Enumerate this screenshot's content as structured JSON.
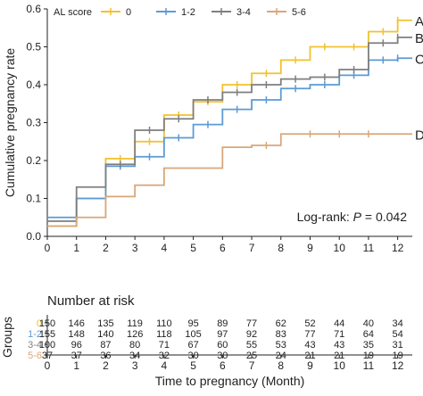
{
  "chart_data": {
    "type": "line",
    "step": true,
    "xlabel": "Time to pregnancy (Month)",
    "ylabel": "Cumulative pregnancy rate",
    "xlim": [
      0,
      12.5
    ],
    "ylim": [
      0,
      0.6
    ],
    "xticks": [
      0,
      1,
      2,
      3,
      4,
      5,
      6,
      7,
      8,
      9,
      10,
      11,
      12
    ],
    "yticks": [
      0.0,
      0.1,
      0.2,
      0.3,
      0.4,
      0.5,
      0.6
    ],
    "ytick_labels": [
      "0.0",
      "0.1",
      "0.2",
      "0.3",
      "0.4",
      "0.5",
      "0.6"
    ],
    "grid": false,
    "legend_title": "AL score",
    "legend_position": "top",
    "annotation": {
      "prefix": "Log-rank: ",
      "p_symbol": "P",
      "suffix": " = 0.042"
    },
    "series": [
      {
        "name": "0",
        "end_label": "A",
        "color": "#F2C12E",
        "x": [
          0,
          1,
          2,
          3,
          4,
          5,
          6,
          7,
          8,
          9,
          10,
          11,
          12
        ],
        "y": [
          0.027,
          0.1,
          0.205,
          0.25,
          0.32,
          0.355,
          0.4,
          0.43,
          0.465,
          0.5,
          0.5,
          0.54,
          0.57
        ],
        "censor_x": [
          2.5,
          3.5,
          4.5,
          5.5,
          6.5,
          7.5,
          8.5,
          9.5,
          10.5,
          11.5,
          12.0
        ],
        "censor_y": [
          0.205,
          0.25,
          0.32,
          0.355,
          0.4,
          0.43,
          0.465,
          0.5,
          0.5,
          0.54,
          0.57
        ]
      },
      {
        "name": "1-2",
        "end_label": "C",
        "color": "#5B9BD5",
        "x": [
          0,
          1,
          2,
          3,
          4,
          5,
          6,
          7,
          8,
          9,
          10,
          11,
          12
        ],
        "y": [
          0.05,
          0.1,
          0.185,
          0.21,
          0.26,
          0.295,
          0.335,
          0.36,
          0.39,
          0.4,
          0.425,
          0.465,
          0.47
        ],
        "censor_x": [
          2.5,
          3.5,
          4.5,
          5.5,
          6.5,
          7.5,
          8.5,
          9.5,
          10.5,
          11.5,
          12.0
        ],
        "censor_y": [
          0.185,
          0.21,
          0.26,
          0.295,
          0.335,
          0.36,
          0.39,
          0.4,
          0.425,
          0.465,
          0.47
        ]
      },
      {
        "name": "3-4",
        "end_label": "B",
        "color": "#7F7F7F",
        "x": [
          0,
          1,
          2,
          3,
          4,
          5,
          6,
          7,
          8,
          9,
          10,
          11,
          12
        ],
        "y": [
          0.04,
          0.13,
          0.19,
          0.28,
          0.31,
          0.36,
          0.38,
          0.4,
          0.415,
          0.42,
          0.44,
          0.51,
          0.525
        ],
        "censor_x": [
          2.5,
          3.5,
          4.5,
          5.5,
          6.5,
          7.5,
          8.5,
          9.5,
          10.5,
          11.5,
          12.0
        ],
        "censor_y": [
          0.19,
          0.28,
          0.31,
          0.36,
          0.38,
          0.4,
          0.415,
          0.42,
          0.44,
          0.51,
          0.525
        ]
      },
      {
        "name": "5-6",
        "end_label": "D",
        "color": "#D9A679",
        "x": [
          0,
          1,
          2,
          3,
          4,
          5,
          6,
          7,
          8,
          9,
          10,
          11,
          12
        ],
        "y": [
          0.027,
          0.05,
          0.105,
          0.135,
          0.18,
          0.18,
          0.235,
          0.24,
          0.27,
          0.27,
          0.27,
          0.27,
          0.27
        ],
        "censor_x": [
          7.5,
          9.0,
          10.0,
          11.0
        ],
        "censor_y": [
          0.24,
          0.27,
          0.27,
          0.27
        ]
      }
    ],
    "risk_table": {
      "title": "Number at risk",
      "axis_title": "Groups",
      "x": [
        0,
        1,
        2,
        3,
        4,
        5,
        6,
        7,
        8,
        9,
        10,
        11,
        12
      ],
      "rows": [
        {
          "group": "0",
          "color": "#F2C12E",
          "values": [
            "150",
            "146",
            "135",
            "119",
            "110",
            "95",
            "89",
            "77",
            "62",
            "52",
            "44",
            "40",
            "34"
          ]
        },
        {
          "group": "1-2",
          "color": "#5B9BD5",
          "values": [
            "155",
            "148",
            "140",
            "126",
            "118",
            "105",
            "97",
            "92",
            "83",
            "77",
            "71",
            "64",
            "54"
          ]
        },
        {
          "group": "3-4",
          "color": "#7F7F7F",
          "values": [
            "100",
            "96",
            "87",
            "80",
            "71",
            "67",
            "60",
            "55",
            "53",
            "43",
            "43",
            "35",
            "31"
          ]
        },
        {
          "group": "5-6",
          "color": "#D9A679",
          "values": [
            "37",
            "37",
            "36",
            "34",
            "32",
            "30",
            "30",
            "25",
            "24",
            "21",
            "21",
            "19",
            "19"
          ]
        }
      ]
    }
  }
}
